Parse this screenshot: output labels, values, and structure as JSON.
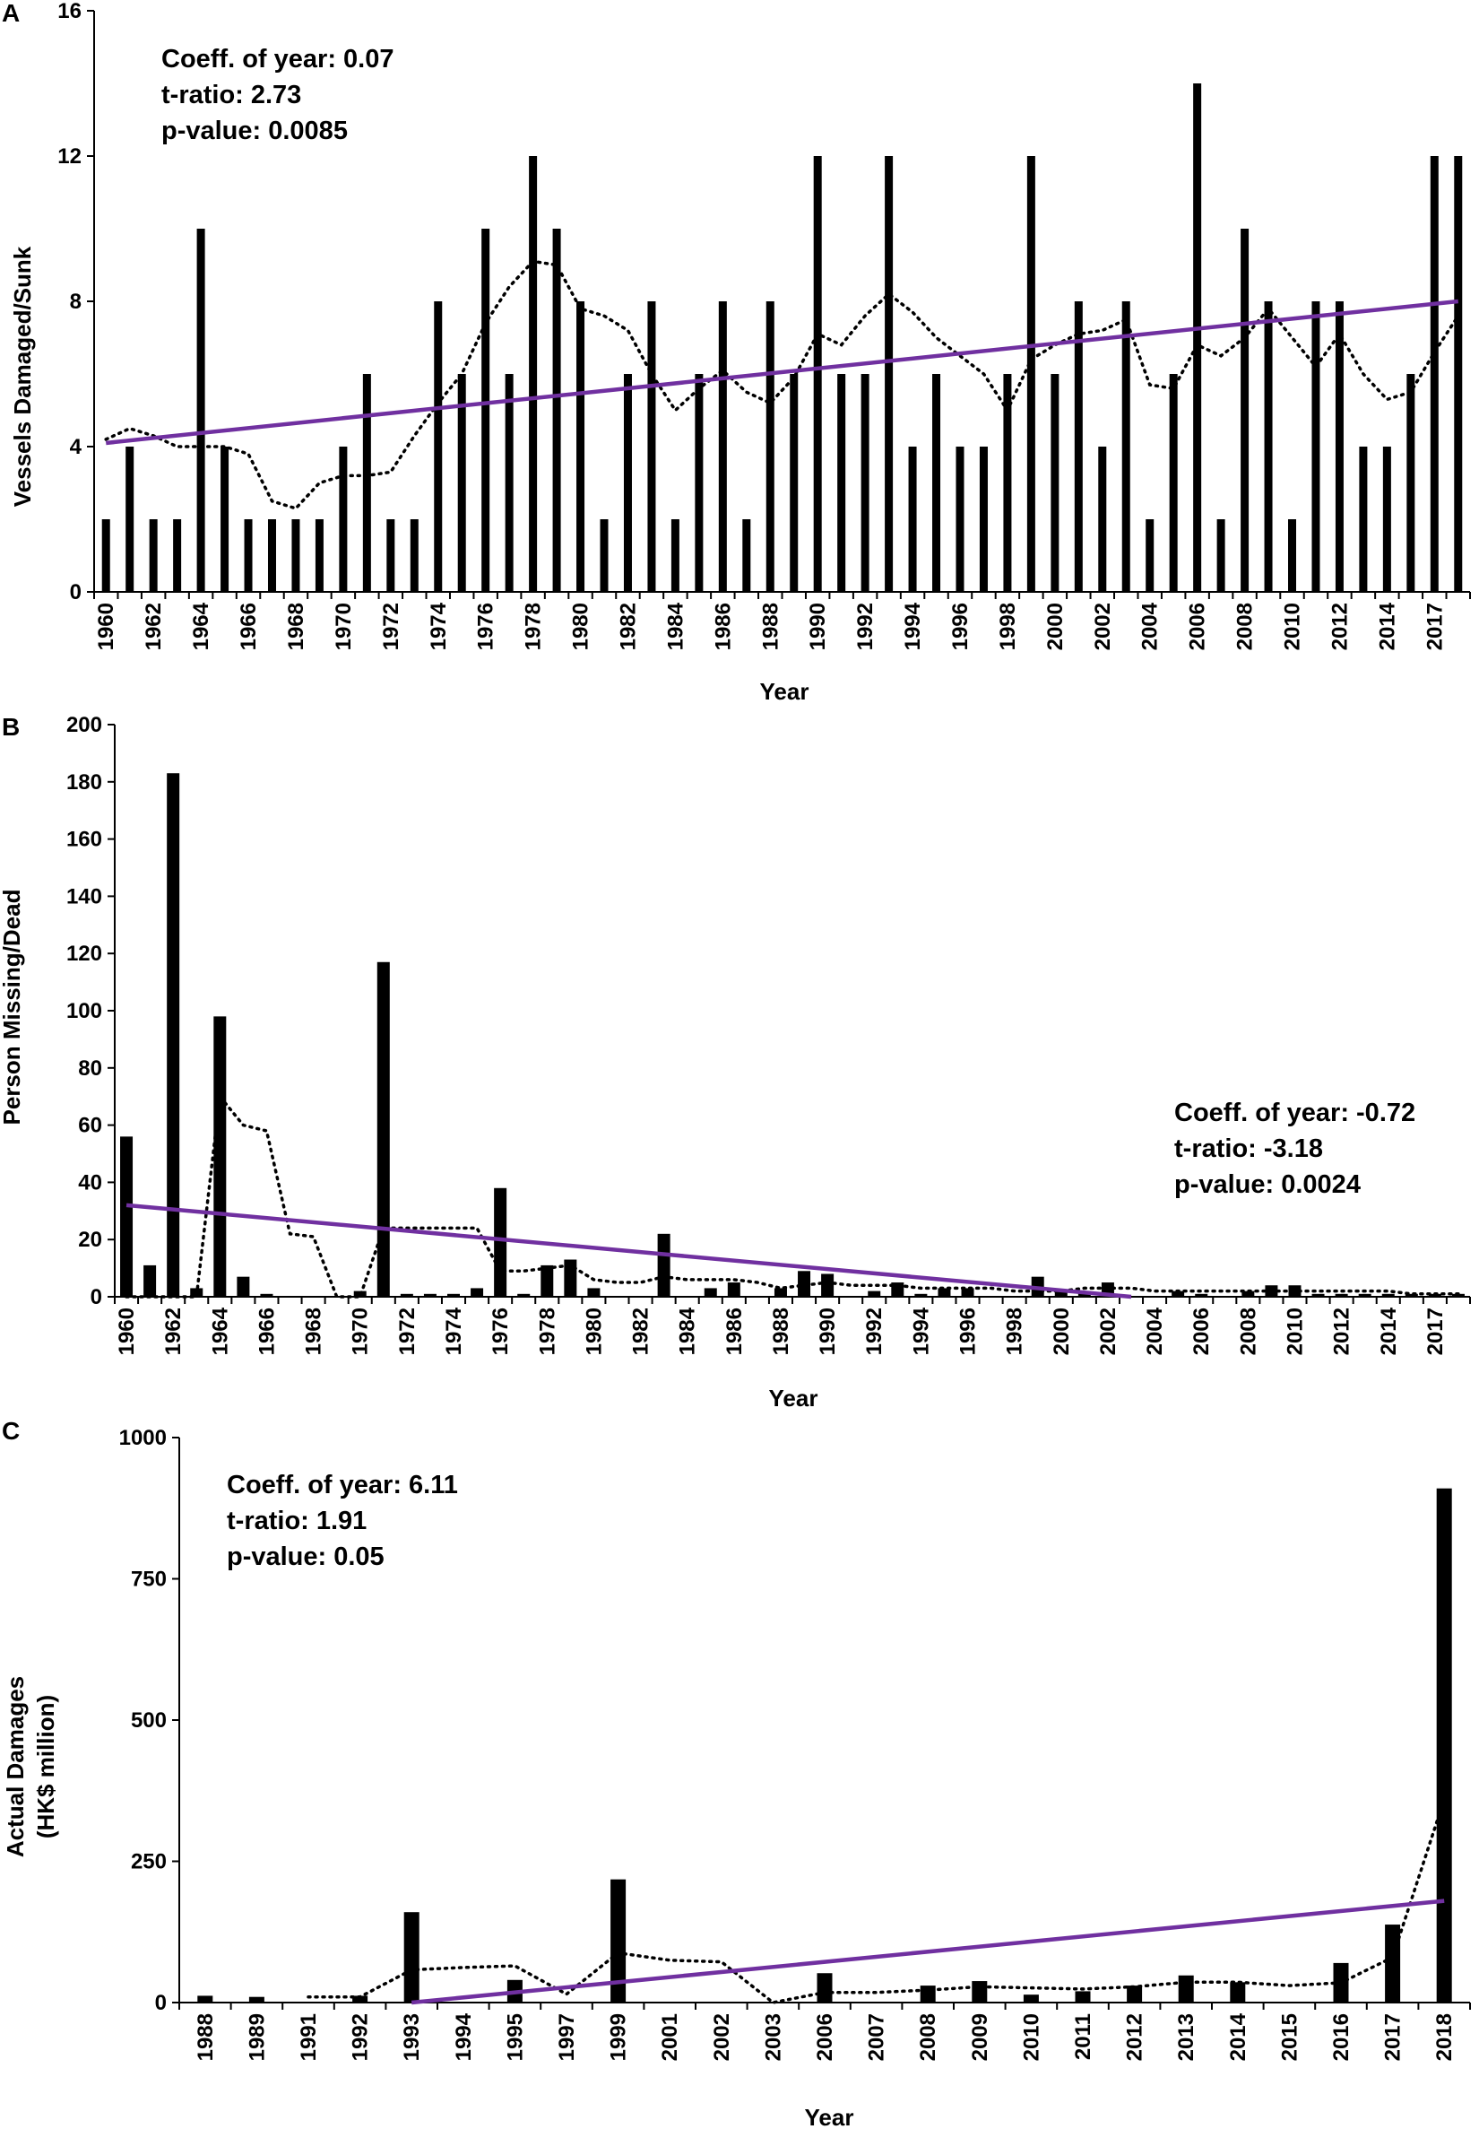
{
  "chart_data": [
    {
      "panel": "A",
      "type": "bar",
      "ylabel": "Vessels Damaged/Sunk",
      "xlabel": "Year",
      "ylim": [
        0,
        16
      ],
      "yticks": [
        "0",
        "4",
        "8",
        "12",
        "16"
      ],
      "xtick_labels": [
        "1960",
        "1962",
        "1964",
        "1966",
        "1968",
        "1970",
        "1972",
        "1974",
        "1976",
        "1978",
        "1980",
        "1982",
        "1984",
        "1986",
        "1988",
        "1990",
        "1992",
        "1994",
        "1996",
        "1998",
        "2000",
        "2002",
        "2004",
        "2006",
        "2008",
        "2010",
        "2012",
        "2014",
        "2017"
      ],
      "categories": [
        "1960",
        "1961",
        "1962",
        "1963",
        "1964",
        "1965",
        "1966",
        "1967",
        "1968",
        "1969",
        "1970",
        "1971",
        "1972",
        "1973",
        "1974",
        "1975",
        "1976",
        "1977",
        "1978",
        "1979",
        "1980",
        "1981",
        "1982",
        "1983",
        "1984",
        "1985",
        "1986",
        "1987",
        "1988",
        "1989",
        "1990",
        "1991",
        "1992",
        "1993",
        "1994",
        "1995",
        "1996",
        "1997",
        "1998",
        "1999",
        "2000",
        "2001",
        "2002",
        "2003",
        "2004",
        "2005",
        "2006",
        "2007",
        "2008",
        "2009",
        "2010",
        "2011",
        "2012",
        "2013",
        "2014",
        "2016",
        "2017",
        "2018"
      ],
      "values": [
        2,
        4,
        2,
        2,
        10,
        4,
        2,
        2,
        2,
        2,
        4,
        6,
        2,
        2,
        8,
        6,
        10,
        6,
        12,
        10,
        8,
        2,
        6,
        8,
        2,
        6,
        8,
        2,
        8,
        6,
        12,
        6,
        6,
        12,
        4,
        6,
        4,
        4,
        6,
        12,
        6,
        8,
        4,
        8,
        2,
        6,
        14,
        2,
        10,
        8,
        2,
        8,
        8,
        4,
        4,
        6,
        12,
        12
      ],
      "trend": {
        "start": 4.1,
        "end": 8.0
      },
      "moving_average": [
        4.2,
        4.5,
        4.3,
        4.0,
        4.0,
        4.0,
        3.8,
        2.5,
        2.3,
        3.0,
        3.2,
        3.2,
        3.3,
        4.3,
        5.2,
        6.0,
        7.4,
        8.4,
        9.1,
        9.0,
        7.8,
        7.6,
        7.2,
        6.0,
        5.0,
        5.6,
        6.1,
        5.5,
        5.2,
        5.9,
        7.1,
        6.8,
        7.6,
        8.2,
        7.7,
        7.0,
        6.5,
        6.0,
        5.0,
        6.4,
        6.8,
        7.1,
        7.2,
        7.5,
        5.7,
        5.6,
        6.8,
        6.5,
        7.0,
        7.8,
        7.0,
        6.2,
        7.1,
        6.0,
        5.3,
        5.5,
        6.6,
        7.6
      ],
      "stats": [
        "Coeff. of year: 0.07",
        "t-ratio: 2.73",
        "p-value: 0.0085"
      ]
    },
    {
      "panel": "B",
      "type": "bar",
      "ylabel": "Person Missing/Dead",
      "xlabel": "Year",
      "ylim": [
        0,
        200
      ],
      "yticks": [
        "0",
        "20",
        "40",
        "60",
        "80",
        "100",
        "120",
        "140",
        "160",
        "180",
        "200"
      ],
      "xtick_labels": [
        "1960",
        "1962",
        "1964",
        "1966",
        "1968",
        "1970",
        "1972",
        "1974",
        "1976",
        "1978",
        "1980",
        "1982",
        "1984",
        "1986",
        "1988",
        "1990",
        "1992",
        "1994",
        "1996",
        "1998",
        "2000",
        "2002",
        "2004",
        "2006",
        "2008",
        "2010",
        "2012",
        "2014",
        "2017"
      ],
      "categories": [
        "1960",
        "1961",
        "1962",
        "1963",
        "1964",
        "1965",
        "1966",
        "1967",
        "1968",
        "1969",
        "1970",
        "1971",
        "1972",
        "1973",
        "1974",
        "1975",
        "1976",
        "1977",
        "1978",
        "1979",
        "1980",
        "1981",
        "1982",
        "1983",
        "1984",
        "1985",
        "1986",
        "1987",
        "1988",
        "1989",
        "1990",
        "1991",
        "1992",
        "1993",
        "1994",
        "1995",
        "1996",
        "1997",
        "1998",
        "1999",
        "2000",
        "2001",
        "2002",
        "2003",
        "2004",
        "2005",
        "2006",
        "2007",
        "2008",
        "2009",
        "2010",
        "2011",
        "2012",
        "2013",
        "2014",
        "2016",
        "2017",
        "2018"
      ],
      "values": [
        56,
        11,
        183,
        3,
        98,
        7,
        1,
        0,
        0,
        0,
        2,
        117,
        1,
        1,
        1,
        3,
        38,
        1,
        11,
        13,
        3,
        0,
        0,
        22,
        0,
        3,
        5,
        0,
        3,
        9,
        8,
        0,
        2,
        5,
        1,
        3,
        3,
        0,
        0,
        7,
        2,
        2,
        5,
        0,
        0,
        2,
        1,
        0,
        2,
        4,
        4,
        1,
        1,
        1,
        1,
        1,
        1,
        1
      ],
      "trend": {
        "start": 32,
        "end": 0
      },
      "moving_average": [
        0,
        0,
        0,
        0,
        70,
        60,
        58,
        22,
        21,
        0,
        0,
        24,
        24,
        24,
        24,
        24,
        9,
        9,
        10,
        11,
        6,
        5,
        5,
        7,
        6,
        6,
        6,
        5,
        3,
        4,
        5,
        4,
        4,
        4,
        3,
        3,
        3,
        3,
        2,
        2,
        2,
        3,
        3,
        3,
        2,
        2,
        2,
        2,
        2,
        2,
        2,
        2,
        2,
        2,
        2,
        1,
        1,
        1
      ],
      "stats": [
        "Coeff. of year: -0.72",
        "t-ratio: -3.18",
        "p-value: 0.0024"
      ]
    },
    {
      "panel": "C",
      "type": "bar",
      "ylabel": "Actual Damages",
      "ylabel2": "(HK$ million)",
      "xlabel": "Year",
      "ylim": [
        0,
        1000
      ],
      "yticks": [
        "0",
        "250",
        "500",
        "750",
        "1000"
      ],
      "categories": [
        "1988",
        "1989",
        "1991",
        "1992",
        "1993",
        "1994",
        "1995",
        "1997",
        "1999",
        "2001",
        "2002",
        "2003",
        "2006",
        "2007",
        "2008",
        "2009",
        "2010",
        "2011",
        "2012",
        "2013",
        "2014",
        "2015",
        "2016",
        "2017",
        "2018"
      ],
      "values": [
        12,
        10,
        0,
        12,
        160,
        0,
        40,
        0,
        218,
        0,
        0,
        0,
        52,
        0,
        30,
        38,
        14,
        20,
        30,
        48,
        36,
        0,
        70,
        138,
        910
      ],
      "trend": {
        "start": 0,
        "end": 180
      },
      "moving_average": [
        null,
        null,
        10,
        10,
        58,
        62,
        65,
        15,
        88,
        75,
        72,
        0,
        18,
        18,
        22,
        28,
        26,
        24,
        28,
        36,
        36,
        30,
        35,
        80,
        360
      ],
      "stats": [
        "Coeff. of year: 6.11",
        "t-ratio: 1.91",
        "p-value: 0.05"
      ]
    }
  ]
}
